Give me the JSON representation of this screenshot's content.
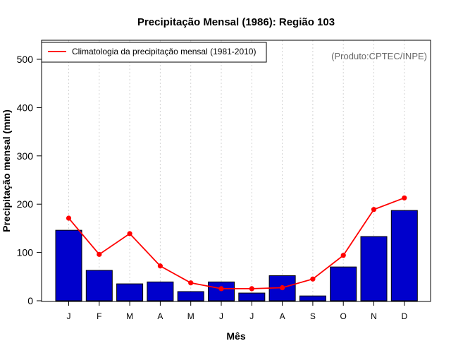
{
  "chart_data": {
    "type": "bar",
    "title": "Precipitação Mensal (1986): Região 103",
    "xlabel": "Mês",
    "ylabel": "Precipitação mensal (mm)",
    "ylim": [
      0,
      530
    ],
    "yticks": [
      0,
      100,
      200,
      300,
      400,
      500
    ],
    "categories": [
      "J",
      "F",
      "M",
      "A",
      "M",
      "J",
      "J",
      "A",
      "S",
      "O",
      "N",
      "D"
    ],
    "series": [
      {
        "name": "Precipitação mensal (1986)",
        "type": "bar",
        "color": "#0000cc",
        "values": [
          146,
          63,
          35,
          39,
          19,
          39,
          16,
          52,
          10,
          70,
          133,
          187
        ]
      },
      {
        "name": "Climatologia da precipitação mensal (1981-2010)",
        "type": "line",
        "color": "#ff0000",
        "values": [
          171,
          96,
          139,
          72,
          37,
          25,
          25,
          27,
          45,
          94,
          189,
          213
        ]
      }
    ],
    "legend": {
      "label": "Climatologia da precipitação mensal (1981-2010)",
      "position": "top-left"
    },
    "credit": "(Produto:CPTEC/INPE)",
    "grid": "vertical dotted"
  }
}
